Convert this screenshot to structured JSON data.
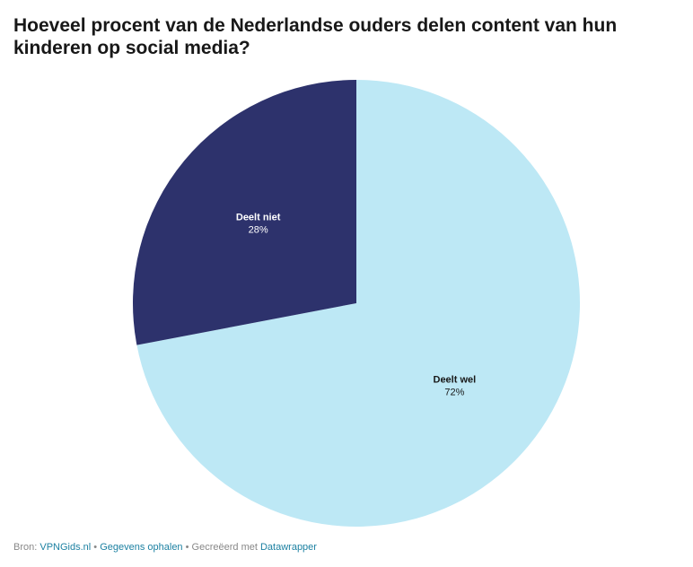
{
  "chart_data": {
    "type": "pie",
    "title": "Hoeveel procent van de Nederlandse ouders delen content van hun kinderen op social media?",
    "slices": [
      {
        "label": "Deelt wel",
        "value": 72,
        "display": "72%",
        "color": "#bde8f5",
        "text_color": "#181818"
      },
      {
        "label": "Deelt niet",
        "value": 28,
        "display": "28%",
        "color": "#2d326c",
        "text_color": "#ffffff"
      }
    ]
  },
  "footer": {
    "source_prefix": "Bron:",
    "source_link": "VPNGids.nl",
    "separator": "•",
    "data_link": "Gegevens ophalen",
    "created_text": "Gecreëerd met",
    "tool_link": "Datawrapper"
  }
}
